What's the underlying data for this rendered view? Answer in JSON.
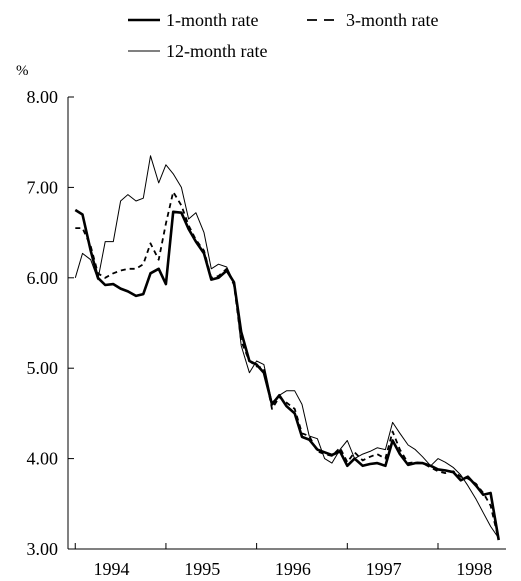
{
  "chart_data": {
    "type": "line",
    "ylabel": "%",
    "ylim": [
      3.0,
      8.0
    ],
    "yticks": [
      "3.00",
      "4.00",
      "5.00",
      "6.00",
      "7.00",
      "8.00"
    ],
    "yticks_values": [
      3,
      4,
      5,
      6,
      7,
      8
    ],
    "xlim": [
      1993.92,
      1998.75
    ],
    "xticks": [
      "1994",
      "1995",
      "1996",
      "1997",
      "1998"
    ],
    "xticks_values": [
      1994.4,
      1995.4,
      1996.4,
      1997.4,
      1998.4
    ],
    "legend_placement": "top",
    "grid": false,
    "series": [
      {
        "name": "1-month rate",
        "style": "thick-solid",
        "x": [
          1994.0,
          1994.08,
          1994.17,
          1994.25,
          1994.33,
          1994.42,
          1994.5,
          1994.58,
          1994.67,
          1994.75,
          1994.83,
          1994.92,
          1995.0,
          1995.08,
          1995.17,
          1995.25,
          1995.33,
          1995.42,
          1995.5,
          1995.58,
          1995.67,
          1995.75,
          1995.83,
          1995.92,
          1996.0,
          1996.08,
          1996.17,
          1996.25,
          1996.33,
          1996.42,
          1996.5,
          1996.58,
          1996.67,
          1996.75,
          1996.83,
          1996.92,
          1997.0,
          1997.08,
          1997.17,
          1997.25,
          1997.33,
          1997.42,
          1997.5,
          1997.58,
          1997.67,
          1997.75,
          1997.83,
          1997.92,
          1998.0,
          1998.08,
          1998.17,
          1998.25,
          1998.33,
          1998.42,
          1998.5,
          1998.58,
          1998.67
        ],
        "values": [
          6.75,
          6.7,
          6.3,
          6.0,
          5.92,
          5.93,
          5.88,
          5.85,
          5.8,
          5.82,
          6.05,
          6.1,
          5.93,
          6.73,
          6.72,
          6.54,
          6.4,
          6.27,
          5.98,
          6.0,
          6.08,
          5.95,
          5.4,
          5.08,
          5.04,
          4.95,
          4.6,
          4.7,
          4.58,
          4.5,
          4.24,
          4.21,
          4.1,
          4.07,
          4.04,
          4.08,
          3.92,
          4.0,
          3.92,
          3.94,
          3.95,
          3.92,
          4.2,
          4.05,
          3.93,
          3.95,
          3.95,
          3.92,
          3.88,
          3.87,
          3.85,
          3.76,
          3.8,
          3.7,
          3.6,
          3.62,
          3.1
        ]
      },
      {
        "name": "3-month rate",
        "style": "dashed",
        "x": [
          1994.0,
          1994.08,
          1994.17,
          1994.25,
          1994.33,
          1994.42,
          1994.5,
          1994.58,
          1994.67,
          1994.75,
          1994.83,
          1994.92,
          1995.0,
          1995.08,
          1995.17,
          1995.25,
          1995.33,
          1995.42,
          1995.5,
          1995.58,
          1995.67,
          1995.75,
          1995.83,
          1995.92,
          1996.0,
          1996.08,
          1996.17,
          1996.25,
          1996.33,
          1996.42,
          1996.5,
          1996.58,
          1996.67,
          1996.75,
          1996.83,
          1996.92,
          1997.0,
          1997.08,
          1997.17,
          1997.25,
          1997.33,
          1997.42,
          1997.5,
          1997.58,
          1997.67,
          1997.75,
          1997.83,
          1997.92,
          1998.0,
          1998.08,
          1998.17,
          1998.25,
          1998.33,
          1998.42,
          1998.5,
          1998.58,
          1998.67
        ],
        "values": [
          6.55,
          6.55,
          6.35,
          6.05,
          6.0,
          6.05,
          6.08,
          6.1,
          6.1,
          6.15,
          6.38,
          6.2,
          6.6,
          6.95,
          6.8,
          6.58,
          6.42,
          6.3,
          6.0,
          6.02,
          6.1,
          5.92,
          5.3,
          5.08,
          5.02,
          5.0,
          4.55,
          4.68,
          4.62,
          4.55,
          4.28,
          4.25,
          4.08,
          4.05,
          4.03,
          4.12,
          3.96,
          4.07,
          3.98,
          4.02,
          4.05,
          4.0,
          4.3,
          4.1,
          3.95,
          3.96,
          3.95,
          3.9,
          3.86,
          3.84,
          3.86,
          3.8,
          3.78,
          3.72,
          3.62,
          3.48,
          3.1
        ]
      },
      {
        "name": "12-month rate",
        "style": "thin-solid",
        "x": [
          1994.0,
          1994.08,
          1994.17,
          1994.25,
          1994.33,
          1994.42,
          1994.5,
          1994.58,
          1994.67,
          1994.75,
          1994.83,
          1994.92,
          1995.0,
          1995.08,
          1995.17,
          1995.25,
          1995.33,
          1995.42,
          1995.5,
          1995.58,
          1995.67,
          1995.75,
          1995.83,
          1995.92,
          1996.0,
          1996.08,
          1996.17,
          1996.25,
          1996.33,
          1996.42,
          1996.5,
          1996.58,
          1996.67,
          1996.75,
          1996.83,
          1996.92,
          1997.0,
          1997.08,
          1997.17,
          1997.25,
          1997.33,
          1997.42,
          1997.5,
          1997.58,
          1997.67,
          1997.75,
          1997.83,
          1997.92,
          1998.0,
          1998.08,
          1998.17,
          1998.25,
          1998.33,
          1998.42,
          1998.5,
          1998.58,
          1998.67
        ],
        "values": [
          6.0,
          6.27,
          6.2,
          5.98,
          6.4,
          6.4,
          6.85,
          6.92,
          6.85,
          6.88,
          7.35,
          7.05,
          7.25,
          7.15,
          7.0,
          6.65,
          6.72,
          6.5,
          6.1,
          6.15,
          6.12,
          5.95,
          5.25,
          4.95,
          5.08,
          5.04,
          4.62,
          4.7,
          4.75,
          4.75,
          4.6,
          4.25,
          4.22,
          4.0,
          3.95,
          4.1,
          4.2,
          4.0,
          4.05,
          4.08,
          4.12,
          4.1,
          4.4,
          4.28,
          4.15,
          4.1,
          4.02,
          3.92,
          4.0,
          3.96,
          3.9,
          3.82,
          3.7,
          3.55,
          3.4,
          3.25,
          3.12
        ]
      }
    ]
  }
}
